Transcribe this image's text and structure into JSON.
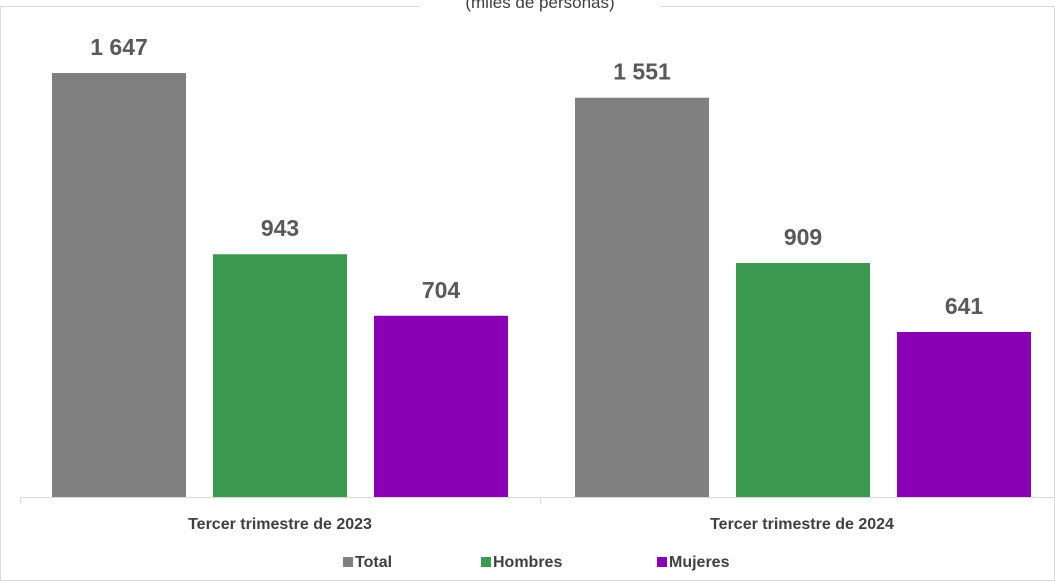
{
  "chart_data": {
    "type": "bar",
    "subtitle": "(miles de personas)",
    "categories": [
      "Tercer trimestre de 2023",
      "Tercer trimestre de 2024"
    ],
    "series": [
      {
        "name": "Total",
        "values": [
          1647,
          1551
        ],
        "labels": [
          "1 647",
          "1 551"
        ],
        "color": "#808080"
      },
      {
        "name": "Hombres",
        "values": [
          943,
          909
        ],
        "labels": [
          "943",
          "909"
        ],
        "color": "#3C9A50"
      },
      {
        "name": "Mujeres",
        "values": [
          704,
          641
        ],
        "labels": [
          "704",
          "641"
        ],
        "color": "#8A00B4"
      }
    ],
    "ylim": [
      0,
      1800
    ],
    "grid": false,
    "legend_position": "bottom"
  }
}
